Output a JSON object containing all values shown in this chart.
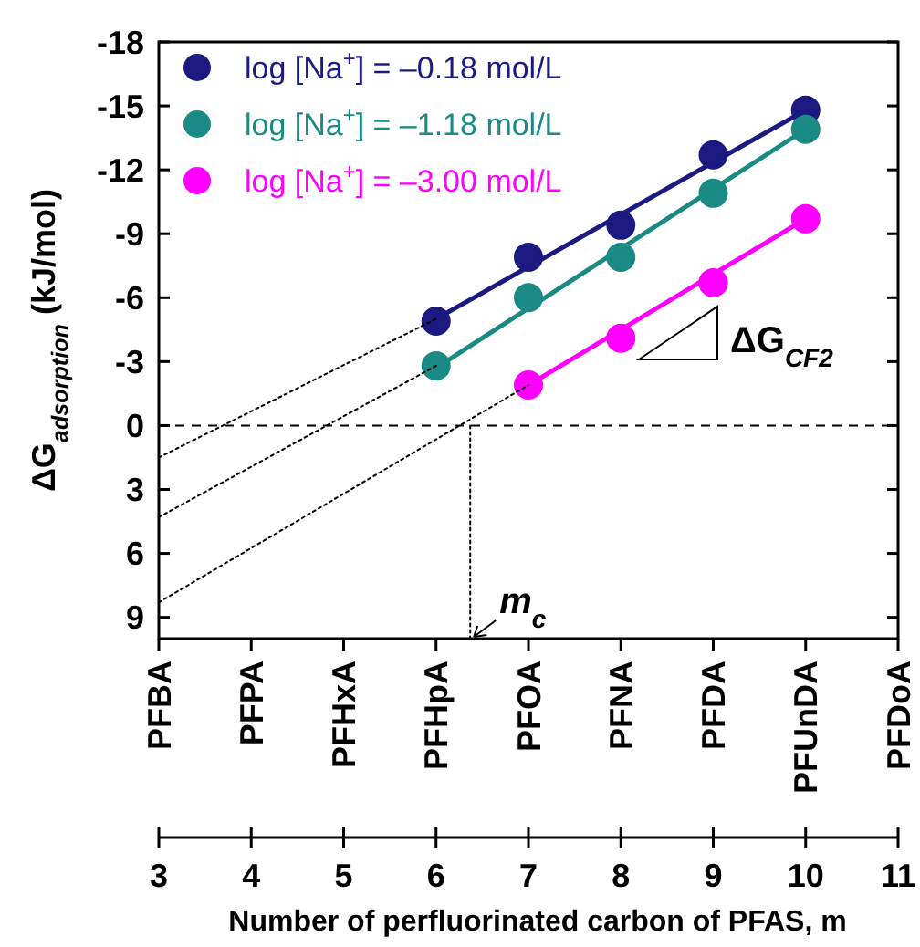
{
  "chart_data": {
    "type": "scatter",
    "ylabel": "ΔG$_{adsorption}$ (kJ/mol)",
    "xlabel": "Number of perfluorinated carbon of PFAS, m",
    "xlim": [
      3,
      11
    ],
    "xticks": [
      3,
      4,
      5,
      6,
      7,
      8,
      9,
      10,
      11
    ],
    "ylim": [
      10,
      -18
    ],
    "yticks": [
      -18,
      -15,
      -12,
      -9,
      -6,
      -3,
      0,
      3,
      6,
      9
    ],
    "grid": false,
    "legend": "top left",
    "marker": "circle",
    "ref_lines": [
      {
        "axis": "y",
        "value": 0,
        "color": "#000000",
        "line_style": "dashed"
      }
    ],
    "series": [
      {
        "name": "log [Na$^{+}$] = –0.18 mol/L",
        "color": "#1a1a80",
        "x": [
          6,
          7,
          8,
          9,
          10
        ],
        "values": [
          -4.9,
          -7.9,
          -9.4,
          -12.7,
          -14.8
        ]
      },
      {
        "name": "log [Na$^{+}$] = –1.18 mol/L",
        "color": "#1a8a84",
        "x": [
          6,
          7,
          8,
          9,
          10
        ],
        "values": [
          -2.8,
          -6.0,
          -7.9,
          -10.9,
          -13.9
        ]
      },
      {
        "name": "log [Na$^{+}$] = –3.00 mol/L",
        "color": "#ff00ff",
        "x": [
          7,
          8,
          9,
          10
        ],
        "values": [
          -1.9,
          -4.1,
          -6.7,
          -9.7
        ]
      },
      {
        "type": "line",
        "color": "#1a1a80",
        "marker": "none",
        "line_style": "solid",
        "x": [
          6,
          10
        ],
        "values": [
          -5.0,
          -14.8
        ]
      },
      {
        "type": "line",
        "color": "#1a8a84",
        "marker": "none",
        "line_style": "solid",
        "x": [
          6,
          10
        ],
        "values": [
          -2.7,
          -13.9
        ]
      },
      {
        "type": "line",
        "color": "#ff00ff",
        "marker": "none",
        "line_style": "solid",
        "x": [
          7,
          10
        ],
        "values": [
          -1.9,
          -9.7
        ]
      },
      {
        "type": "line",
        "color": "#000000",
        "marker": "none",
        "line_style": "dotted",
        "x": [
          3,
          6
        ],
        "values": [
          1.5,
          -5.0
        ]
      },
      {
        "type": "line",
        "color": "#000000",
        "marker": "none",
        "line_style": "dotted",
        "x": [
          3,
          6
        ],
        "values": [
          4.3,
          -2.8
        ]
      },
      {
        "type": "line",
        "color": "#000000",
        "marker": "none",
        "line_style": "dotted",
        "x": [
          3,
          7
        ],
        "values": [
          8.3,
          -1.9
        ]
      },
      {
        "type": "line",
        "color": "#000000",
        "marker": "none",
        "line_style": "dotted",
        "x": [
          6.37,
          6.37
        ],
        "values": [
          0,
          10
        ]
      }
    ],
    "annotations": [
      {
        "text": "m$_{c}$",
        "x": 6.37,
        "y": 10
      },
      "ΔG$_{CF2}$",
      "PFBA",
      "PFPA",
      "PFHxA",
      "PFHpA",
      "PFOA",
      "PFNA",
      "PFDA",
      "PFUnDA",
      "PFDoA"
    ]
  }
}
